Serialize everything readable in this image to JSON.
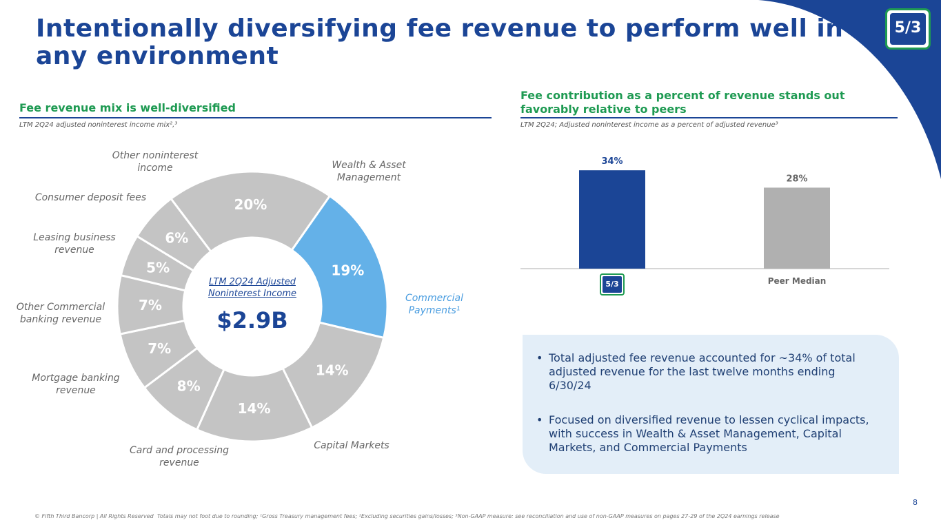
{
  "title": "Intentionally diversifying fee revenue to perform well in any environment",
  "page_number": "8",
  "copyright": "© Fifth Third Bancorp | All Rights Reserved",
  "footnote": "Totals may not foot due to rounding; ¹Gross Treasury management fees; ²Excluding securities gains/losses; ³Non-GAAP measure: see reconciliation and use of non-GAAP measures on pages 27-29 of the 2Q24 earnings release",
  "left": {
    "heading": "Fee revenue mix is well-diversified",
    "subnote": "LTM 2Q24 adjusted noninterest income mix²,³",
    "center_label": "LTM 2Q24 Adjusted Noninterest Income",
    "center_value": "$2.9B"
  },
  "right": {
    "heading": "Fee contribution as a percent of revenue stands out favorably relative to peers",
    "subnote": "LTM 2Q24; Adjusted noninterest income as a percent of adjusted revenue³",
    "bullets": [
      "Total adjusted fee revenue accounted for ~34% of total adjusted revenue for the last twelve months ending 6/30/24",
      "Focused on diversified revenue to lessen cyclical impacts, with success in Wealth & Asset Management, Capital Markets, and Commercial Payments"
    ]
  },
  "logo_text": "5/3",
  "colors": {
    "brand_blue": "#1b4596",
    "green": "#1e9a52",
    "highlight": "#64b1e8",
    "grey": "#c4c4c4",
    "peer_grey": "#b0b0b0",
    "callout": "#e3eef8"
  },
  "chart_data": [
    {
      "type": "pie",
      "variant": "donut",
      "title": "LTM 2Q24 adjusted noninterest income mix",
      "unit": "%",
      "slices": [
        {
          "name": "Wealth & Asset Management",
          "value": 20,
          "label": "20%",
          "highlight": false
        },
        {
          "name": "Commercial Payments¹",
          "value": 19,
          "label": "19%",
          "highlight": true
        },
        {
          "name": "Capital Markets",
          "value": 14,
          "label": "14%",
          "highlight": false
        },
        {
          "name": "Card and processing revenue",
          "value": 14,
          "label": "14%",
          "highlight": false
        },
        {
          "name": "Mortgage banking revenue",
          "value": 8,
          "label": "8%",
          "highlight": false
        },
        {
          "name": "Other Commercial banking revenue",
          "value": 7,
          "label": "7%",
          "highlight": false
        },
        {
          "name": "Leasing business revenue",
          "value": 7,
          "label": "7%",
          "highlight": false
        },
        {
          "name": "Consumer deposit fees",
          "value": 5,
          "label": "5%",
          "highlight": false
        },
        {
          "name": "Other noninterest income",
          "value": 6,
          "label": "6%",
          "highlight": false
        }
      ]
    },
    {
      "type": "bar",
      "title": "Adjusted noninterest income as a percent of adjusted revenue",
      "categories": [
        "Fifth Third",
        "Peer Median"
      ],
      "values": [
        34,
        28
      ],
      "labels": [
        "34%",
        "28%"
      ],
      "x_tick_labels": [
        "",
        "Peer Median"
      ],
      "ylim": [
        0,
        40
      ]
    }
  ]
}
